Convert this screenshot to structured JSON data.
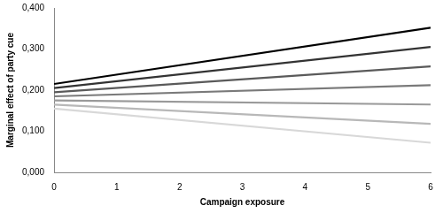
{
  "chart_data": {
    "type": "line",
    "x_label": "Campaign exposure",
    "y_label": "Marginal effect of party cue",
    "x": [
      0,
      6
    ],
    "series": [
      {
        "color": "#000000",
        "values": [
          0.215,
          0.352
        ]
      },
      {
        "color": "#333333",
        "values": [
          0.205,
          0.305
        ]
      },
      {
        "color": "#5a5a5a",
        "values": [
          0.195,
          0.258
        ]
      },
      {
        "color": "#7a7a7a",
        "values": [
          0.185,
          0.212
        ]
      },
      {
        "color": "#9a9a9a",
        "values": [
          0.175,
          0.165
        ]
      },
      {
        "color": "#b8b8b8",
        "values": [
          0.165,
          0.118
        ]
      },
      {
        "color": "#d8d8d8",
        "values": [
          0.155,
          0.072
        ]
      }
    ],
    "xlim": [
      0,
      6
    ],
    "xticks": [
      0,
      1,
      2,
      3,
      4,
      5,
      6
    ],
    "ylim": [
      0,
      0.4
    ],
    "yticks": [
      {
        "value": 0,
        "label": "0,000"
      },
      {
        "value": 0.1,
        "label": "0,100"
      },
      {
        "value": 0.2,
        "label": "0,200"
      },
      {
        "value": 0.3,
        "label": "0,300"
      },
      {
        "value": 0.4,
        "label": "0,400"
      }
    ],
    "grid": false
  }
}
